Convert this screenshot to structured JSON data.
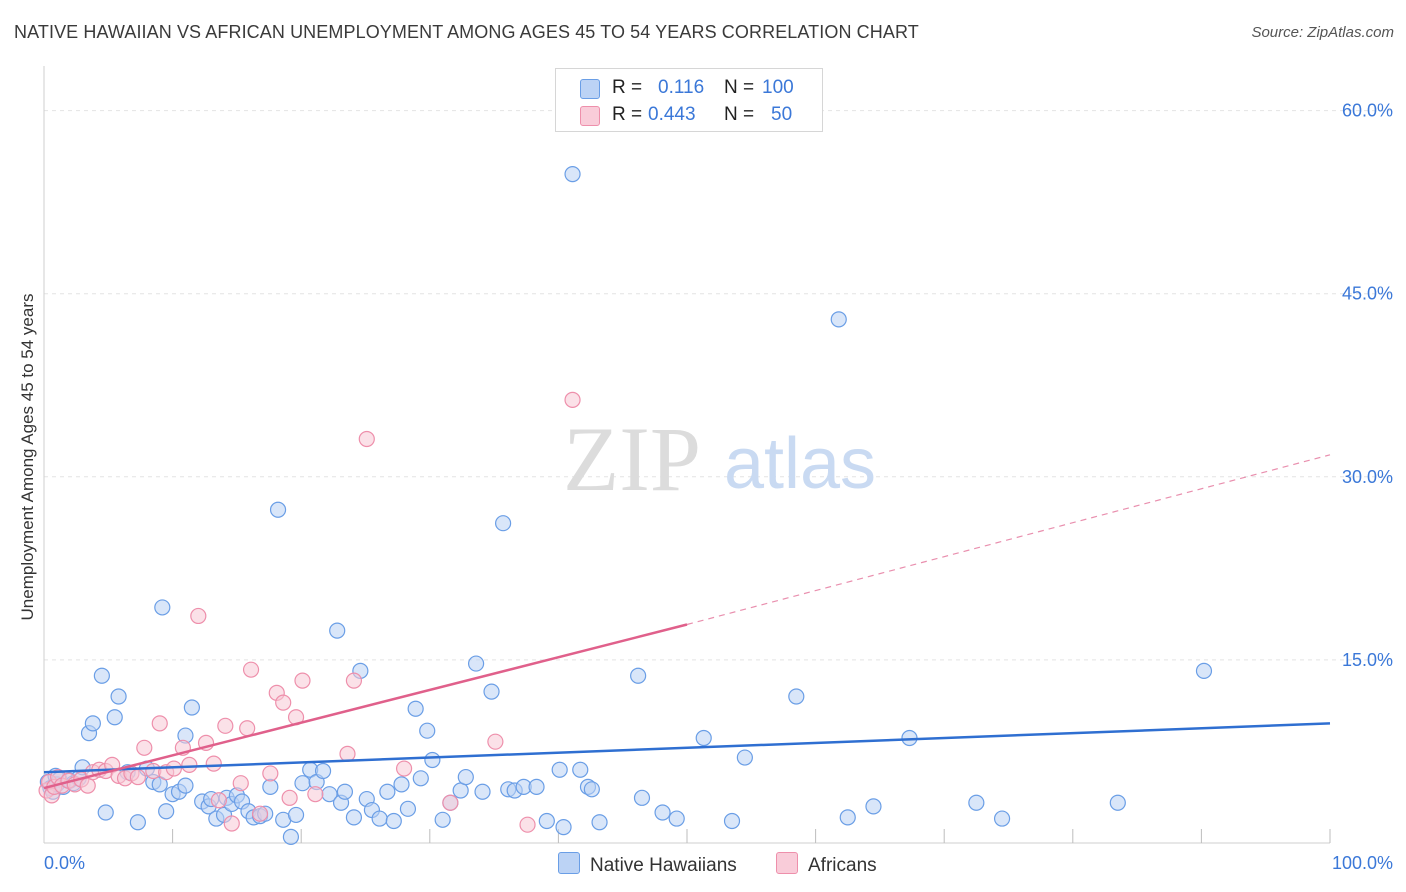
{
  "header": {
    "title": "NATIVE HAWAIIAN VS AFRICAN UNEMPLOYMENT AMONG AGES 45 TO 54 YEARS CORRELATION CHART",
    "source": "Source: ZipAtlas.com"
  },
  "watermark": {
    "zip": "ZIP",
    "atlas": "atlas"
  },
  "legend": {
    "rows": [
      {
        "r_label": "R =",
        "r_value": "0.116",
        "n_label": "N =",
        "n_value": "100",
        "color": "#a9c8f2"
      },
      {
        "r_label": "R =",
        "r_value": "0.443",
        "n_label": "N =",
        "n_value": "50",
        "color": "#f6b9ca"
      }
    ]
  },
  "bottom_legend": {
    "native": "Native Hawaiians",
    "africans": "Africans"
  },
  "chart_data": {
    "type": "scatter",
    "title": "NATIVE HAWAIIAN VS AFRICAN UNEMPLOYMENT AMONG AGES 45 TO 54 YEARS CORRELATION CHART",
    "xlabel": "",
    "ylabel": "Unemployment Among Ages 45 to 54 years",
    "xlim": [
      0,
      100
    ],
    "ylim": [
      0,
      63
    ],
    "x_tick_labels": [
      "0.0%",
      "100.0%"
    ],
    "y_ticks": [
      15,
      30,
      45,
      60
    ],
    "y_tick_labels": [
      "15.0%",
      "30.0%",
      "45.0%",
      "60.0%"
    ],
    "grid": true,
    "series": [
      {
        "name": "Native Hawaiians",
        "color": "#6a9ee6",
        "fill": "#b9d2f4",
        "trend_color": "#2f6fd1",
        "trend": {
          "x": [
            0,
            100
          ],
          "y": [
            5.8,
            9.8
          ]
        },
        "points": [
          [
            0.3,
            5.0
          ],
          [
            0.5,
            4.5
          ],
          [
            0.7,
            4.2
          ],
          [
            0.9,
            5.5
          ],
          [
            1.0,
            4.8
          ],
          [
            1.2,
            5.2
          ],
          [
            1.5,
            4.6
          ],
          [
            2.0,
            5.1
          ],
          [
            2.3,
            4.9
          ],
          [
            2.7,
            5.3
          ],
          [
            3.0,
            6.2
          ],
          [
            3.5,
            9.0
          ],
          [
            3.8,
            9.8
          ],
          [
            4.5,
            13.7
          ],
          [
            4.8,
            2.5
          ],
          [
            5.5,
            10.3
          ],
          [
            5.8,
            12.0
          ],
          [
            6.5,
            5.8
          ],
          [
            7.3,
            1.7
          ],
          [
            8.0,
            6.1
          ],
          [
            8.5,
            5.0
          ],
          [
            9.0,
            4.8
          ],
          [
            9.2,
            19.3
          ],
          [
            9.5,
            2.6
          ],
          [
            10.0,
            4.0
          ],
          [
            10.5,
            4.2
          ],
          [
            11.0,
            4.7
          ],
          [
            11.0,
            8.8
          ],
          [
            11.5,
            11.1
          ],
          [
            12.3,
            3.4
          ],
          [
            12.8,
            3.0
          ],
          [
            13.0,
            3.6
          ],
          [
            13.4,
            2.0
          ],
          [
            14.0,
            2.3
          ],
          [
            14.2,
            3.7
          ],
          [
            14.6,
            3.2
          ],
          [
            15.0,
            3.9
          ],
          [
            15.4,
            3.4
          ],
          [
            15.9,
            2.6
          ],
          [
            16.3,
            2.1
          ],
          [
            16.8,
            2.2
          ],
          [
            17.2,
            2.4
          ],
          [
            17.6,
            4.6
          ],
          [
            18.2,
            27.3
          ],
          [
            18.6,
            1.9
          ],
          [
            19.2,
            0.5
          ],
          [
            19.6,
            2.3
          ],
          [
            20.1,
            4.9
          ],
          [
            20.7,
            6.0
          ],
          [
            21.2,
            5.0
          ],
          [
            21.7,
            5.9
          ],
          [
            22.2,
            4.0
          ],
          [
            22.8,
            17.4
          ],
          [
            23.1,
            3.3
          ],
          [
            23.4,
            4.2
          ],
          [
            24.1,
            2.1
          ],
          [
            24.6,
            14.1
          ],
          [
            25.1,
            3.6
          ],
          [
            25.5,
            2.7
          ],
          [
            26.1,
            2.0
          ],
          [
            26.7,
            4.2
          ],
          [
            27.2,
            1.8
          ],
          [
            27.8,
            4.8
          ],
          [
            28.3,
            2.8
          ],
          [
            28.9,
            11.0
          ],
          [
            29.3,
            5.3
          ],
          [
            29.8,
            9.2
          ],
          [
            30.2,
            6.8
          ],
          [
            31.0,
            1.9
          ],
          [
            31.6,
            3.3
          ],
          [
            32.4,
            4.3
          ],
          [
            32.8,
            5.4
          ],
          [
            33.6,
            14.7
          ],
          [
            34.1,
            4.2
          ],
          [
            34.8,
            12.4
          ],
          [
            35.7,
            26.2
          ],
          [
            36.1,
            4.4
          ],
          [
            36.6,
            4.3
          ],
          [
            37.3,
            4.6
          ],
          [
            38.3,
            4.6
          ],
          [
            39.1,
            1.8
          ],
          [
            40.1,
            6.0
          ],
          [
            40.4,
            1.3
          ],
          [
            41.1,
            54.8
          ],
          [
            41.7,
            6.0
          ],
          [
            42.3,
            4.6
          ],
          [
            42.6,
            4.4
          ],
          [
            43.2,
            1.7
          ],
          [
            46.2,
            13.7
          ],
          [
            46.5,
            3.7
          ],
          [
            48.1,
            2.5
          ],
          [
            49.2,
            2.0
          ],
          [
            51.3,
            8.6
          ],
          [
            53.5,
            1.8
          ],
          [
            54.5,
            7.0
          ],
          [
            58.5,
            12.0
          ],
          [
            62.5,
            2.1
          ],
          [
            64.5,
            3.0
          ],
          [
            72.5,
            3.3
          ],
          [
            74.5,
            2.0
          ],
          [
            83.5,
            3.3
          ],
          [
            90.2,
            14.1
          ],
          [
            61.8,
            42.9
          ],
          [
            67.3,
            8.6
          ]
        ]
      },
      {
        "name": "Africans",
        "color": "#ee8fab",
        "fill": "#f8c8d6",
        "trend_color": "#e0608b",
        "trend": {
          "x": [
            0,
            50
          ],
          "y": [
            4.5,
            17.9
          ]
        },
        "trend_extension": {
          "x": [
            50,
            100
          ],
          "y": [
            17.9,
            31.8
          ]
        },
        "points": [
          [
            0.2,
            4.3
          ],
          [
            0.4,
            5.0
          ],
          [
            0.6,
            3.9
          ],
          [
            0.8,
            4.6
          ],
          [
            1.1,
            5.4
          ],
          [
            1.4,
            4.7
          ],
          [
            1.9,
            5.1
          ],
          [
            2.4,
            4.8
          ],
          [
            2.9,
            5.2
          ],
          [
            3.4,
            4.7
          ],
          [
            3.8,
            5.8
          ],
          [
            4.3,
            6.0
          ],
          [
            4.8,
            5.9
          ],
          [
            5.3,
            6.4
          ],
          [
            5.8,
            5.5
          ],
          [
            6.3,
            5.3
          ],
          [
            6.8,
            5.7
          ],
          [
            7.3,
            5.4
          ],
          [
            7.8,
            7.8
          ],
          [
            8.5,
            5.9
          ],
          [
            9.0,
            9.8
          ],
          [
            9.5,
            5.8
          ],
          [
            10.1,
            6.1
          ],
          [
            10.8,
            7.8
          ],
          [
            11.3,
            6.4
          ],
          [
            12.0,
            18.6
          ],
          [
            12.6,
            8.2
          ],
          [
            13.2,
            6.5
          ],
          [
            13.6,
            3.5
          ],
          [
            14.1,
            9.6
          ],
          [
            14.6,
            1.6
          ],
          [
            15.3,
            4.9
          ],
          [
            15.8,
            9.4
          ],
          [
            16.1,
            14.2
          ],
          [
            16.8,
            2.4
          ],
          [
            17.6,
            5.7
          ],
          [
            18.1,
            12.3
          ],
          [
            18.6,
            11.5
          ],
          [
            19.1,
            3.7
          ],
          [
            19.6,
            10.3
          ],
          [
            20.1,
            13.3
          ],
          [
            21.1,
            4.0
          ],
          [
            23.6,
            7.3
          ],
          [
            24.1,
            13.3
          ],
          [
            25.1,
            33.1
          ],
          [
            28.0,
            6.1
          ],
          [
            31.6,
            3.3
          ],
          [
            35.1,
            8.3
          ],
          [
            37.6,
            1.5
          ],
          [
            41.1,
            36.3
          ]
        ]
      }
    ]
  }
}
